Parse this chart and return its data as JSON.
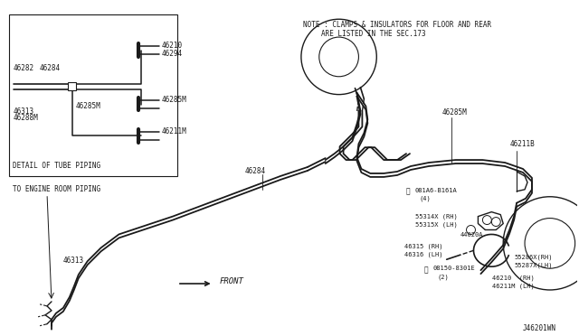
{
  "bg_color": "#ffffff",
  "line_color": "#1a1a1a",
  "fig_label": "J46201WN",
  "note_line1": "NOTE : CLAMPS & INSULATORS FOR FLOOR AND REAR",
  "note_line2": "ARE LISTED IN THE SEC.173"
}
